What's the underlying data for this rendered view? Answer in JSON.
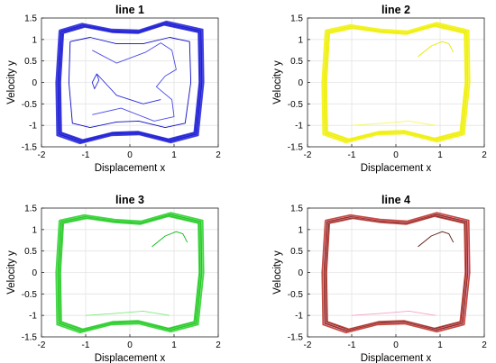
{
  "figure": {
    "grid": true,
    "chart_data": [
      {
        "type": "line",
        "title": "line 1",
        "xlabel": "Displacement x",
        "ylabel": "Velocity y",
        "xlim": [
          -2,
          2
        ],
        "ylim": [
          -1.5,
          1.5
        ],
        "xticks": [
          "-2",
          "-1",
          "0",
          "1",
          "2"
        ],
        "yticks": [
          "1.5",
          "1",
          "0.5",
          "0",
          "-0.5",
          "-1",
          "-1.5"
        ],
        "colors": [
          "#2a2ad8",
          "#0a0ac4",
          "#4b4bea"
        ],
        "series": [
          {
            "x": [
              -1.55,
              -1.05,
              -0.4,
              0.2,
              0.8,
              1.6,
              1.62,
              1.5,
              0.9,
              0.2,
              -0.4,
              -1.1,
              -1.6,
              -1.62,
              -1.55
            ],
            "y": [
              1.18,
              1.33,
              1.2,
              1.18,
              1.38,
              1.2,
              0,
              -1.2,
              -1.36,
              -1.18,
              -1.2,
              -1.38,
              -1.2,
              0,
              1.18
            ]
          },
          {
            "x": [
              -1.35,
              -0.9,
              -0.3,
              0.3,
              0.9,
              1.35,
              1.38,
              1.25,
              0.8,
              0.2,
              -0.3,
              -0.9,
              -1.3,
              -1.38,
              -1.35
            ],
            "y": [
              0.95,
              1.05,
              0.9,
              0.9,
              1.05,
              0.95,
              0,
              -0.95,
              -1.05,
              -0.9,
              -0.92,
              -1.05,
              -0.95,
              0,
              0.95
            ]
          },
          {
            "x": [
              -0.85,
              -0.3,
              0.35,
              0.7,
              0.95,
              1.05,
              0.8,
              0.6,
              0.95,
              1.0,
              0.55,
              -0.2,
              -0.85
            ],
            "y": [
              0.75,
              0.45,
              0.7,
              0.92,
              0.75,
              0.3,
              0.15,
              -0.1,
              -0.4,
              -0.8,
              -0.9,
              -0.6,
              -0.75
            ]
          },
          {
            "x": [
              -0.75,
              -0.85,
              -0.8,
              -0.7,
              -0.75,
              -0.3,
              0.3,
              0.7
            ],
            "y": [
              0.2,
              0.0,
              -0.15,
              0.05,
              0.2,
              -0.3,
              -0.5,
              -0.4
            ]
          }
        ]
      },
      {
        "type": "line",
        "title": "line 2",
        "xlabel": "Displacement x",
        "ylabel": "Velocity y",
        "xlim": [
          -2,
          2
        ],
        "ylim": [
          -1.5,
          1.5
        ],
        "xticks": [
          "-2",
          "-1",
          "0",
          "1",
          "2"
        ],
        "yticks": [
          "1.5",
          "1",
          "0.5",
          "0",
          "-0.5",
          "-1",
          "-1.5"
        ],
        "colors": [
          "#f2f20d",
          "#e8e800",
          "#f7f75a"
        ],
        "series": [
          {
            "x": [
              -1.55,
              -1.0,
              -0.35,
              0.25,
              0.9,
              1.6,
              1.62,
              1.5,
              0.9,
              0.2,
              -0.4,
              -1.1,
              -1.6,
              -1.62,
              -1.55
            ],
            "y": [
              1.18,
              1.3,
              1.2,
              1.16,
              1.35,
              1.18,
              0,
              -1.18,
              -1.34,
              -1.16,
              -1.18,
              -1.36,
              -1.18,
              0,
              1.18
            ]
          },
          {
            "x": [
              0.5,
              0.8,
              1.05,
              1.2,
              1.3
            ],
            "y": [
              0.6,
              0.85,
              0.95,
              0.9,
              0.7
            ]
          },
          {
            "x": [
              -1.0,
              -0.3,
              0.3,
              0.9
            ],
            "y": [
              -1.0,
              -0.95,
              -0.9,
              -1.0
            ]
          }
        ]
      },
      {
        "type": "line",
        "title": "line 3",
        "xlabel": "Displacement x",
        "ylabel": "Velocity y",
        "xlim": [
          -2,
          2
        ],
        "ylim": [
          -1.5,
          1.5
        ],
        "xticks": [
          "-2",
          "-1",
          "0",
          "1",
          "2"
        ],
        "yticks": [
          "1.5",
          "1",
          "0.5",
          "0",
          "-0.5",
          "-1",
          "-1.5"
        ],
        "colors": [
          "#2fd12f",
          "#12b812",
          "#7fea7f"
        ],
        "series": [
          {
            "x": [
              -1.55,
              -1.0,
              -0.35,
              0.25,
              0.9,
              1.6,
              1.62,
              1.5,
              0.9,
              0.2,
              -0.4,
              -1.1,
              -1.6,
              -1.62,
              -1.55
            ],
            "y": [
              1.18,
              1.3,
              1.2,
              1.16,
              1.35,
              1.18,
              0,
              -1.18,
              -1.34,
              -1.16,
              -1.18,
              -1.36,
              -1.18,
              0,
              1.18
            ]
          },
          {
            "x": [
              0.5,
              0.8,
              1.05,
              1.2,
              1.3
            ],
            "y": [
              0.6,
              0.85,
              0.95,
              0.9,
              0.7
            ]
          },
          {
            "x": [
              -1.0,
              -0.3,
              0.3,
              0.9
            ],
            "y": [
              -1.0,
              -0.95,
              -0.9,
              -1.0
            ]
          }
        ]
      },
      {
        "type": "line",
        "title": "line 4",
        "xlabel": "Displacement x",
        "ylabel": "Velocity y",
        "xlim": [
          -2,
          2
        ],
        "ylim": [
          -1.5,
          1.5
        ],
        "xticks": [
          "-2",
          "-1",
          "0",
          "1",
          "2"
        ],
        "yticks": [
          "1.5",
          "1",
          "0.5",
          "0",
          "-0.5",
          "-1",
          "-1.5"
        ],
        "colors": [
          "#c0392b",
          "#5a1a14",
          "#f4a3c8"
        ],
        "series": [
          {
            "x": [
              -1.55,
              -1.0,
              -0.35,
              0.25,
              0.9,
              1.6,
              1.62,
              1.5,
              0.9,
              0.2,
              -0.4,
              -1.1,
              -1.6,
              -1.62,
              -1.55
            ],
            "y": [
              1.18,
              1.3,
              1.2,
              1.16,
              1.35,
              1.18,
              0,
              -1.18,
              -1.34,
              -1.16,
              -1.18,
              -1.36,
              -1.18,
              0,
              1.18
            ]
          },
          {
            "x": [
              0.5,
              0.8,
              1.05,
              1.2,
              1.3
            ],
            "y": [
              0.6,
              0.85,
              0.95,
              0.9,
              0.7
            ]
          },
          {
            "x": [
              -1.0,
              -0.3,
              0.3,
              0.9
            ],
            "y": [
              -1.0,
              -0.95,
              -0.9,
              -1.0
            ]
          }
        ]
      }
    ]
  }
}
